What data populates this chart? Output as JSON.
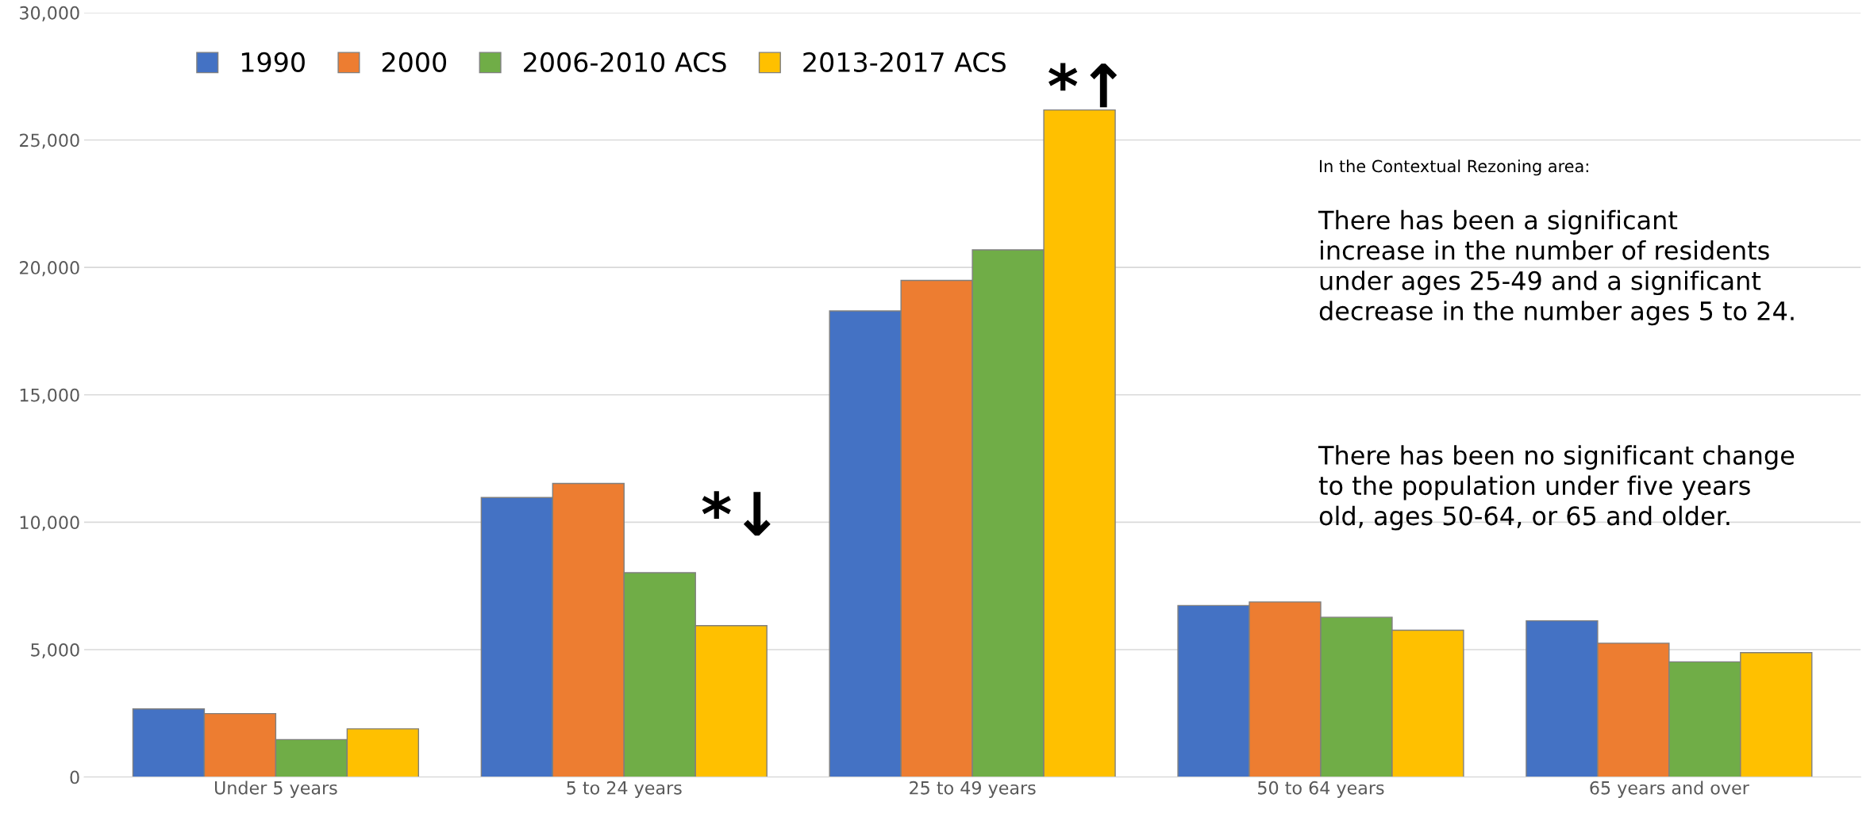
{
  "chart_data": {
    "type": "bar",
    "categories": [
      "Under 5 years",
      "5 to 24 years",
      "25 to 49 years",
      "50 to 64 years",
      "65 years and over"
    ],
    "series": [
      {
        "name": "1990",
        "color": "#4472c4",
        "values": [
          2670,
          10970,
          18290,
          6730,
          6130
        ]
      },
      {
        "name": "2000",
        "color": "#ed7d31",
        "values": [
          2490,
          11520,
          19490,
          6870,
          5250
        ]
      },
      {
        "name": "2006-2010 ACS",
        "color": "#70ad47",
        "values": [
          1470,
          8020,
          20690,
          6270,
          4520
        ]
      },
      {
        "name": "2013-2017 ACS",
        "color": "#ffc000",
        "values": [
          1890,
          5940,
          26180,
          5760,
          4880
        ]
      }
    ],
    "ylim": [
      0,
      30000
    ],
    "yticks": [
      {
        "value": 0,
        "label": "0"
      },
      {
        "value": 5000,
        "label": "5,000"
      },
      {
        "value": 10000,
        "label": "10,000"
      },
      {
        "value": 15000,
        "label": "15,000"
      },
      {
        "value": 20000,
        "label": "20,000"
      },
      {
        "value": 25000,
        "label": "25,000"
      },
      {
        "value": 30000,
        "label": "30,000"
      }
    ],
    "grid": "y",
    "legend": "top left",
    "annotations": [
      "*↓",
      "*↑",
      "In the Contextual Rezoning area:",
      "There has been a significant\nincrease in the number of residents\nunder ages 25-49 and a significant\ndecrease in the number ages 5 to 24.",
      "There has been no significant change\nto the population under five years\nold, ages 50-64, or 65 and older."
    ]
  }
}
